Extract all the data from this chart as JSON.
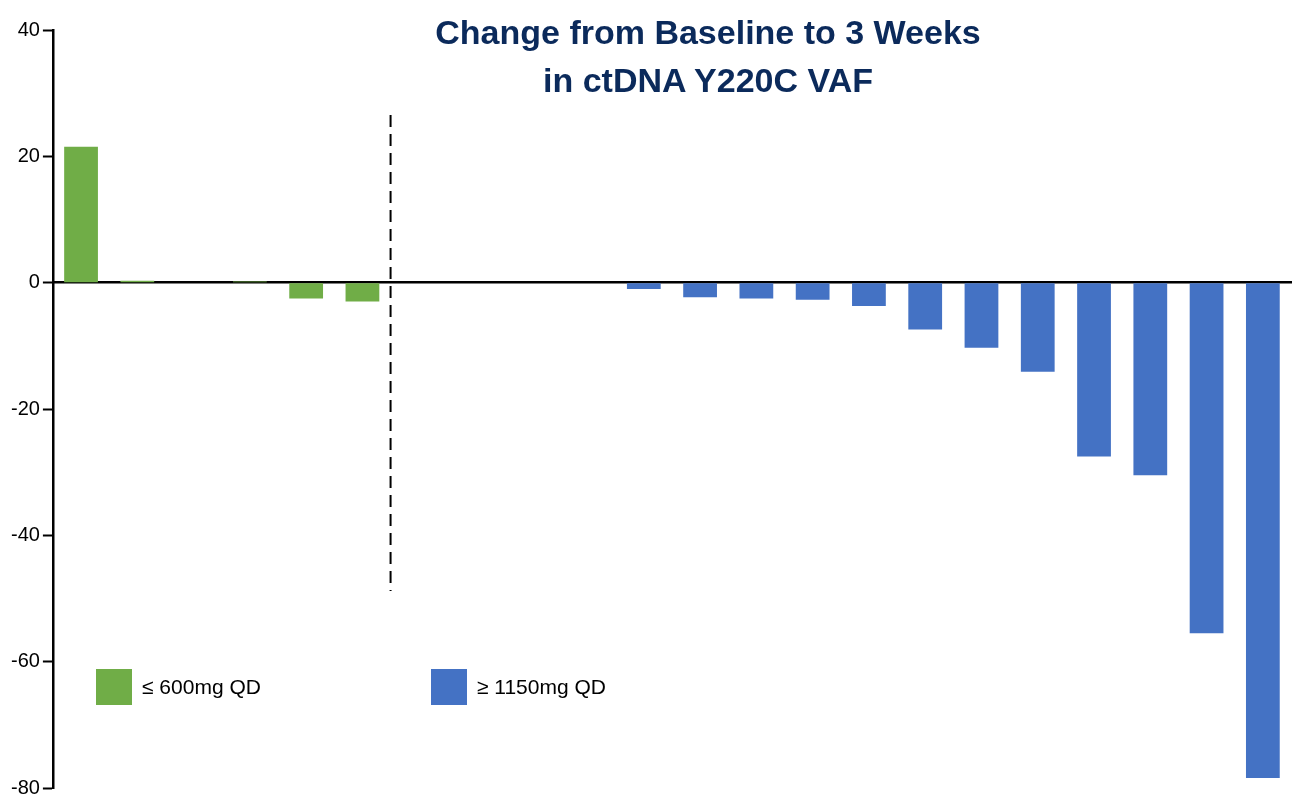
{
  "chart_data": {
    "type": "bar",
    "title": "Change from Baseline to 3 Weeks in ctDNA Y220C VAF",
    "categories": [
      null,
      null,
      null,
      null,
      null,
      null,
      null,
      null,
      null,
      null,
      null,
      null,
      null,
      null,
      null,
      null,
      null,
      null,
      null,
      null,
      null,
      null
    ],
    "series": [
      {
        "name": "≤ 600mg QD",
        "color": "#70ad47",
        "values": [
          21.5,
          0.3,
          0,
          0.2,
          -2.5,
          -3,
          null,
          null,
          null,
          null,
          null,
          null,
          null,
          null,
          null,
          null,
          null,
          null,
          null,
          null,
          null,
          null
        ]
      },
      {
        "name": "≥ 1150mg QD",
        "color": "#4472c4",
        "values": [
          null,
          null,
          null,
          null,
          null,
          null,
          0,
          -0.1,
          -0.1,
          0,
          -1,
          -2.3,
          -2.5,
          -2.7,
          -3.7,
          -7.4,
          -10.3,
          -14.1,
          -27.5,
          -30.5,
          -55.5,
          -78.4
        ]
      }
    ],
    "ylim": [
      -80,
      40
    ],
    "yticks": [
      -80,
      -60,
      -40,
      -20,
      0,
      20,
      40
    ],
    "legend": "bottom left"
  }
}
